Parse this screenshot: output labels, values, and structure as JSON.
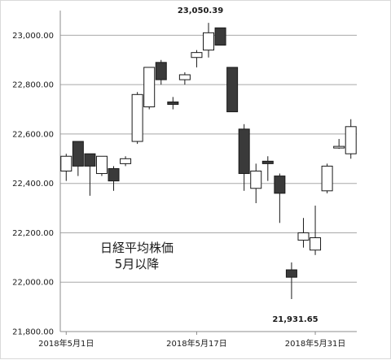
{
  "chart_data": {
    "type": "candlestick",
    "title_lines": [
      "日経平均株価",
      "5月以降"
    ],
    "ylim": [
      21800,
      23100
    ],
    "yticks": [
      21800,
      22000,
      22200,
      22400,
      22600,
      22800,
      23000
    ],
    "ytick_labels": [
      "21,800.00",
      "22,000.00",
      "22,200.00",
      "22,400.00",
      "22,600.00",
      "22,800.00",
      "23,000.00"
    ],
    "xtick_labels": [
      {
        "index": 0,
        "label": "2018年5月1日"
      },
      {
        "index": 11,
        "label": "2018年5月17日"
      },
      {
        "index": 21,
        "label": "2018年5月31日"
      }
    ],
    "candles": [
      {
        "open": 22450,
        "high": 22520,
        "low": 22410,
        "close": 22510
      },
      {
        "open": 22570,
        "high": 22570,
        "low": 22430,
        "close": 22470
      },
      {
        "open": 22520,
        "high": 22520,
        "low": 22350,
        "close": 22470
      },
      {
        "open": 22440,
        "high": 22510,
        "low": 22430,
        "close": 22510
      },
      {
        "open": 22460,
        "high": 22470,
        "low": 22370,
        "close": 22410
      },
      {
        "open": 22480,
        "high": 22510,
        "low": 22470,
        "close": 22500
      },
      {
        "open": 22570,
        "high": 22770,
        "low": 22560,
        "close": 22760
      },
      {
        "open": 22710,
        "high": 22870,
        "low": 22700,
        "close": 22870
      },
      {
        "open": 22890,
        "high": 22900,
        "low": 22800,
        "close": 22820
      },
      {
        "open": 22730,
        "high": 22750,
        "low": 22700,
        "close": 22720
      },
      {
        "open": 22820,
        "high": 22850,
        "low": 22800,
        "close": 22840
      },
      {
        "open": 22910,
        "high": 22940,
        "low": 22870,
        "close": 22930
      },
      {
        "open": 22940,
        "high": 23050.39,
        "low": 22910,
        "close": 23010
      },
      {
        "open": 23030,
        "high": 23030,
        "low": 22960,
        "close": 22960
      },
      {
        "open": 22870,
        "high": 22870,
        "low": 22690,
        "close": 22690
      },
      {
        "open": 22620,
        "high": 22640,
        "low": 22370,
        "close": 22440
      },
      {
        "open": 22380,
        "high": 22480,
        "low": 22320,
        "close": 22450
      },
      {
        "open": 22490,
        "high": 22510,
        "low": 22410,
        "close": 22480
      },
      {
        "open": 22430,
        "high": 22440,
        "low": 22240,
        "close": 22360
      },
      {
        "open": 22170,
        "high": 22260,
        "low": 22140,
        "close": 22200
      },
      {
        "open": 22130,
        "high": 22310,
        "low": 22110,
        "close": 22180
      },
      {
        "open": 22370,
        "high": 22480,
        "low": 22360,
        "close": 22470
      },
      {
        "open": 22550,
        "high": 22580,
        "low": 22540,
        "close": 22550
      },
      {
        "open": 22520,
        "high": 22660,
        "low": 22500,
        "close": 22630
      },
      {
        "open": 22050,
        "high": 22080,
        "low": 21931.65,
        "close": 22020
      }
    ],
    "order": [
      0,
      1,
      2,
      3,
      4,
      5,
      6,
      7,
      8,
      9,
      10,
      11,
      12,
      13,
      14,
      15,
      16,
      17,
      18,
      24,
      19,
      20,
      21,
      22,
      23
    ],
    "annotations": [
      {
        "text": "23,050.39",
        "index": 12,
        "value": 23050.39,
        "position": "above"
      },
      {
        "text": "21,931.65",
        "index": 19,
        "value": 21931.65,
        "position": "below"
      }
    ],
    "up_color": "#ffffff",
    "down_color": "#3a3a3a",
    "grid": true
  }
}
